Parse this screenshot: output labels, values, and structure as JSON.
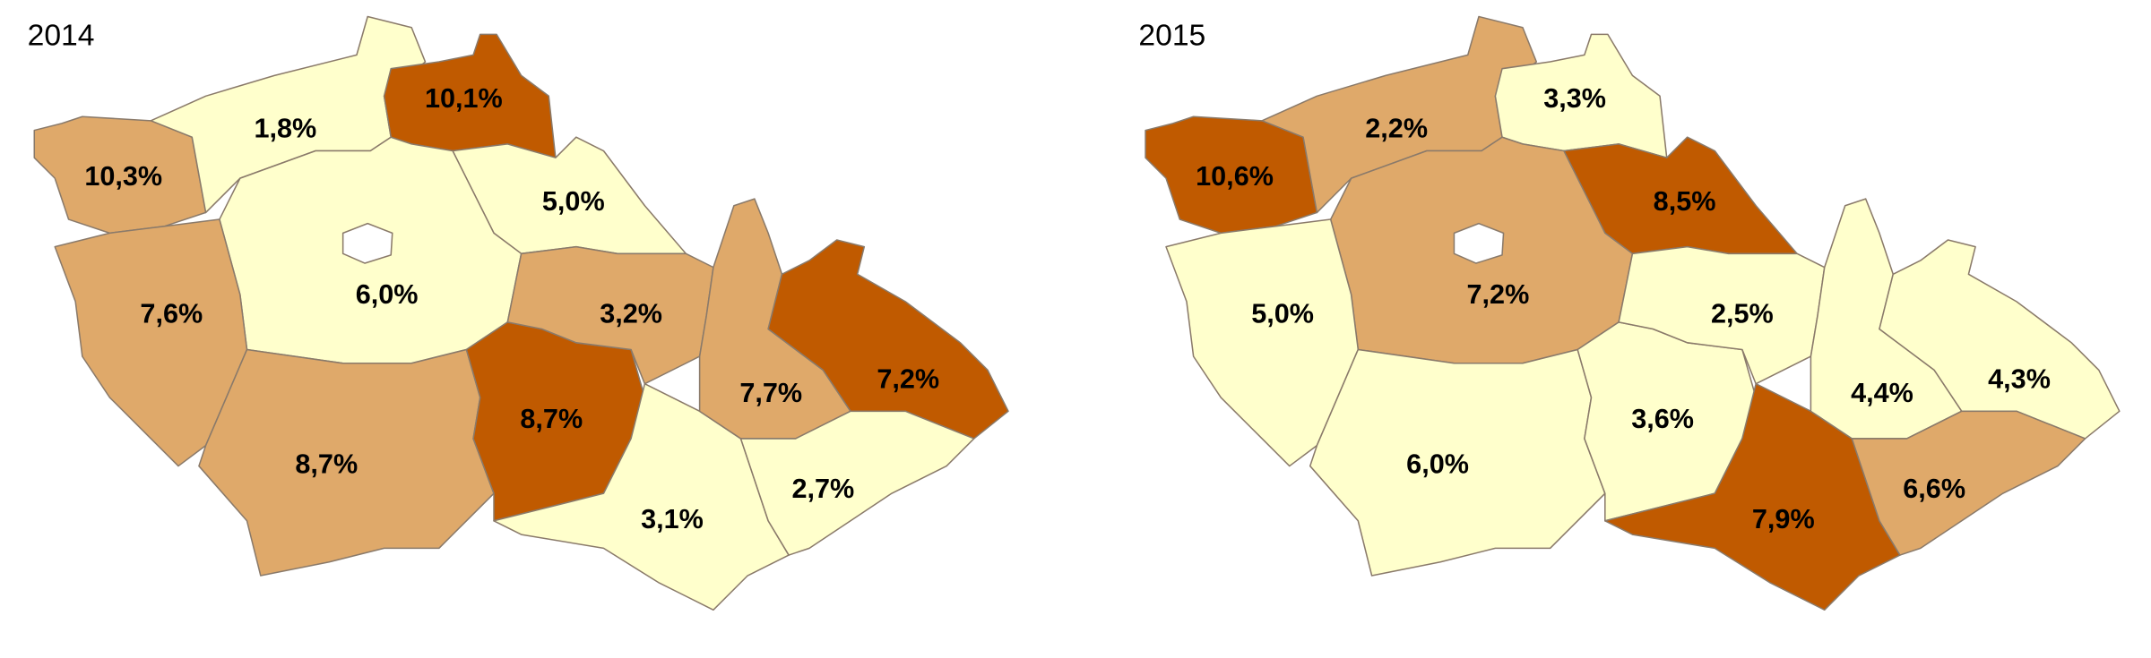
{
  "maps": [
    {
      "title": "2014",
      "regions": [
        {
          "label": "10,3%",
          "fill": "#dfa96a"
        },
        {
          "label": "1,8%",
          "fill": "#ffffcc"
        },
        {
          "label": "10,1%",
          "fill": "#c05a00"
        },
        {
          "label": "5,0%",
          "fill": "#ffffcc"
        },
        {
          "label": "6,0%",
          "fill": "#ffffcc"
        },
        {
          "label": "7,6%",
          "fill": "#dfa96a"
        },
        {
          "label": "8,7%",
          "fill": "#dfa96a"
        },
        {
          "label": "8,7%",
          "fill": "#c05a00"
        },
        {
          "label": "3,2%",
          "fill": "#dfa96a"
        },
        {
          "label": "3,1%",
          "fill": "#ffffcc"
        },
        {
          "label": "7,7%",
          "fill": "#dfa96a"
        },
        {
          "label": "7,2%",
          "fill": "#c05a00"
        },
        {
          "label": "2,7%",
          "fill": "#ffffcc"
        }
      ]
    },
    {
      "title": "2015",
      "regions": [
        {
          "label": "10,6%",
          "fill": "#c05a00"
        },
        {
          "label": "2,2%",
          "fill": "#dfa96a"
        },
        {
          "label": "3,3%",
          "fill": "#ffffcc"
        },
        {
          "label": "8,5%",
          "fill": "#c05a00"
        },
        {
          "label": "7,2%",
          "fill": "#dfa96a"
        },
        {
          "label": "5,0%",
          "fill": "#ffffcc"
        },
        {
          "label": "6,0%",
          "fill": "#ffffcc"
        },
        {
          "label": "3,6%",
          "fill": "#ffffcc"
        },
        {
          "label": "2,5%",
          "fill": "#ffffcc"
        },
        {
          "label": "7,9%",
          "fill": "#c05a00"
        },
        {
          "label": "4,4%",
          "fill": "#ffffcc"
        },
        {
          "label": "4,3%",
          "fill": "#ffffcc"
        },
        {
          "label": "6,6%",
          "fill": "#dfa96a"
        }
      ]
    }
  ]
}
